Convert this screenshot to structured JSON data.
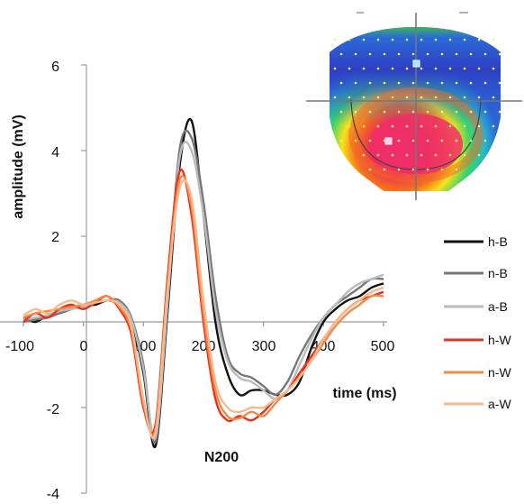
{
  "chart_data": {
    "type": "line",
    "xlabel": "time (ms)",
    "ylabel": "amplitude (mV)",
    "annotation": "N200",
    "xlim": [
      -100,
      500
    ],
    "ylim": [
      -4,
      6
    ],
    "x_ticks": [
      "-100",
      "0",
      "100",
      "200",
      "300",
      "400",
      "500"
    ],
    "y_ticks": [
      "6",
      "4",
      "2",
      "-2",
      "-4"
    ],
    "grid": false,
    "legend_position": "right",
    "inset": "scalp topography map",
    "x": [
      -100,
      -80,
      -60,
      -40,
      -20,
      0,
      20,
      40,
      60,
      80,
      100,
      120,
      140,
      160,
      180,
      200,
      220,
      240,
      260,
      280,
      300,
      320,
      340,
      360,
      380,
      400,
      420,
      440,
      460,
      480,
      500
    ],
    "series": [
      {
        "name": "h-B",
        "color": "#111111",
        "values": [
          0.1,
          0.0,
          0.15,
          0.2,
          0.3,
          0.4,
          0.4,
          0.5,
          0.4,
          0.0,
          -1.2,
          -2.9,
          0.2,
          3.6,
          4.7,
          2.5,
          0.0,
          -1.2,
          -1.7,
          -1.6,
          -1.6,
          -1.7,
          -1.7,
          -1.4,
          -0.6,
          0.0,
          0.3,
          0.5,
          0.6,
          0.8,
          0.9
        ]
      },
      {
        "name": "n-B",
        "color": "#777777",
        "values": [
          0.0,
          0.05,
          0.1,
          0.2,
          0.3,
          0.4,
          0.45,
          0.5,
          0.5,
          0.1,
          -1.0,
          -2.8,
          0.5,
          4.0,
          4.3,
          2.8,
          0.6,
          -0.8,
          -1.2,
          -1.3,
          -1.5,
          -1.7,
          -1.4,
          -0.8,
          -0.3,
          0.1,
          0.4,
          0.6,
          0.8,
          1.0,
          1.0
        ]
      },
      {
        "name": "a-B",
        "color": "#bbbbbb",
        "values": [
          0.05,
          0.1,
          0.15,
          0.25,
          0.3,
          0.35,
          0.45,
          0.5,
          0.45,
          0.05,
          -1.1,
          -2.7,
          0.4,
          3.8,
          4.0,
          2.5,
          0.3,
          -0.9,
          -1.3,
          -1.4,
          -1.6,
          -1.8,
          -1.6,
          -1.0,
          -0.4,
          0.1,
          0.4,
          0.7,
          0.9,
          1.0,
          1.1
        ]
      },
      {
        "name": "h-W",
        "color": "#e8301e",
        "values": [
          0.0,
          0.2,
          0.1,
          0.3,
          0.4,
          0.3,
          0.45,
          0.6,
          0.3,
          -0.3,
          -2.0,
          -2.4,
          1.0,
          3.5,
          2.5,
          0.0,
          -1.8,
          -2.3,
          -2.2,
          -2.3,
          -2.1,
          -1.8,
          -1.6,
          -1.2,
          -0.8,
          -0.4,
          0.0,
          0.3,
          0.5,
          0.6,
          0.7
        ]
      },
      {
        "name": "n-W",
        "color": "#f08a45",
        "values": [
          0.1,
          0.2,
          0.25,
          0.3,
          0.35,
          0.4,
          0.5,
          0.6,
          0.35,
          -0.2,
          -1.9,
          -2.5,
          0.8,
          3.3,
          2.7,
          0.2,
          -1.6,
          -2.2,
          -2.25,
          -2.1,
          -2.2,
          -1.9,
          -1.6,
          -1.3,
          -0.9,
          -0.5,
          -0.1,
          0.2,
          0.4,
          0.6,
          0.6
        ]
      },
      {
        "name": "a-W",
        "color": "#f6b98e",
        "values": [
          0.15,
          0.3,
          0.2,
          0.4,
          0.5,
          0.4,
          0.45,
          0.5,
          0.4,
          -0.1,
          -1.8,
          -2.6,
          0.7,
          3.1,
          2.9,
          0.5,
          -1.4,
          -2.0,
          -2.1,
          -2.0,
          -2.0,
          -1.8,
          -1.6,
          -1.3,
          -0.9,
          -0.4,
          0.0,
          0.3,
          0.5,
          0.7,
          0.8
        ]
      }
    ]
  }
}
